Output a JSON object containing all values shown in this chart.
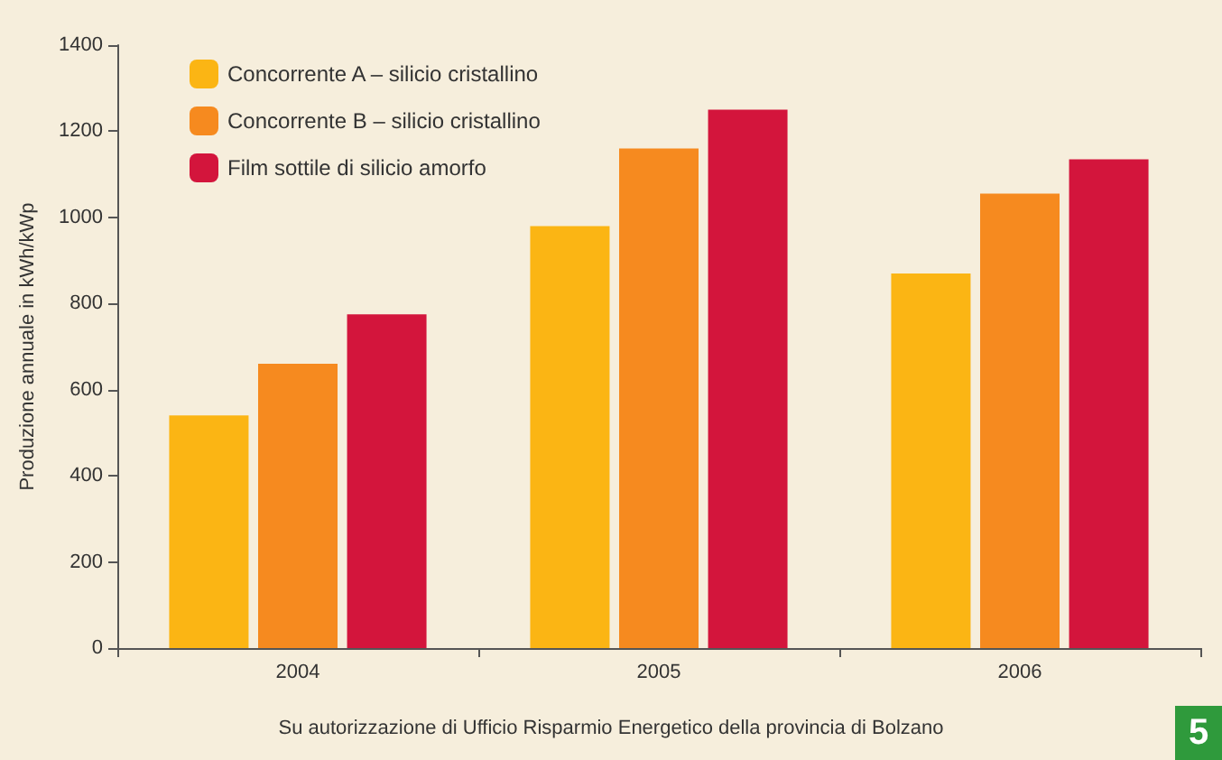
{
  "chart_data": {
    "type": "bar",
    "ylabel": "Produzione annuale in kWh/kWp",
    "categories": [
      "2004",
      "2005",
      "2006"
    ],
    "series": [
      {
        "name": "Concorrente A – silicio cristallino",
        "color": "#fbb514",
        "values": [
          540,
          980,
          870
        ]
      },
      {
        "name": "Concorrente B – silicio cristallino",
        "color": "#f68a1f",
        "values": [
          660,
          1160,
          1055
        ]
      },
      {
        "name": "Film sottile di silicio amorfo",
        "color": "#d3153c",
        "values": [
          775,
          1250,
          1135
        ]
      }
    ],
    "ylim": [
      0,
      1400
    ],
    "yticks": [
      0,
      200,
      400,
      600,
      800,
      1000,
      1200,
      1400
    ],
    "grid": false,
    "legend": "top left",
    "annotations": [
      "Su autorizzazione di Ufficio Risparmio Energetico della provincia di Bolzano",
      "5"
    ]
  }
}
